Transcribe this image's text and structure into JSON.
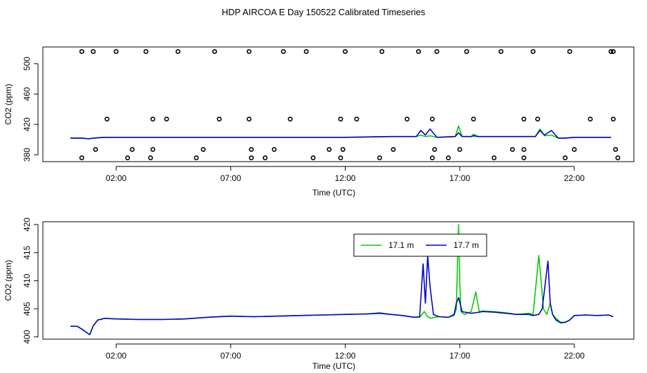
{
  "figure": {
    "title": "HDP AIRCOA E  Day 150522  Calibrated Timeseries"
  },
  "colors": {
    "series_17_1": "#00cc00",
    "series_17_7": "#0000cc",
    "points": "#000000"
  },
  "chart_data": [
    {
      "type": "scatter",
      "xlabel": "Time (UTC)",
      "ylabel": "CO2 (ppm)",
      "x_tick_labels": [
        "02:00",
        "07:00",
        "12:00",
        "17:00",
        "22:00"
      ],
      "x_tick_values": [
        2,
        7,
        12,
        17,
        22
      ],
      "y_tick_labels": [
        "380",
        "420",
        "460",
        "500"
      ],
      "y_tick_values": [
        380,
        420,
        460,
        500
      ],
      "xlim": [
        -1.2,
        24.6
      ],
      "ylim": [
        371,
        522
      ],
      "grid": false,
      "point_series": {
        "marker": "open-circle",
        "x": [
          0.5,
          1.0,
          2.0,
          3.3,
          4.7,
          6.3,
          7.8,
          9.3,
          10.3,
          12.0,
          13.6,
          15.2,
          16.0,
          17.3,
          18.8,
          20.2,
          21.8,
          23.6,
          23.7,
          1.6,
          3.6,
          4.2,
          6.5,
          7.8,
          9.6,
          11.8,
          12.5,
          14.7,
          15.8,
          17.6,
          19.8,
          20.4,
          22.7,
          23.7,
          1.1,
          2.7,
          3.6,
          5.8,
          7.9,
          8.9,
          11.3,
          11.9,
          14.1,
          15.9,
          17.0,
          19.3,
          19.8,
          22.0,
          23.8,
          0.5,
          2.5,
          3.5,
          5.5,
          7.9,
          8.5,
          10.6,
          11.8,
          13.5,
          15.8,
          16.5,
          18.5,
          19.8,
          21.6,
          23.9
        ],
        "y": [
          516,
          516,
          516,
          516,
          516,
          516,
          516,
          516,
          516,
          516,
          516,
          516,
          516,
          516,
          516,
          516,
          516,
          516,
          516,
          427,
          427,
          427,
          427,
          427,
          427,
          427,
          427,
          427,
          427,
          427,
          427,
          427,
          427,
          427,
          387,
          387,
          387,
          387,
          387,
          387,
          387,
          387,
          387,
          387,
          387,
          387,
          387,
          387,
          387,
          376,
          376,
          376,
          376,
          376,
          376,
          376,
          376,
          376,
          376,
          376,
          376,
          376,
          376,
          376
        ]
      },
      "line_series": [
        {
          "x": [
            0.0,
            0.5,
            0.8,
            1.0,
            1.5,
            3.0,
            6.0,
            9.0,
            12.0,
            14.0,
            15.1,
            15.3,
            15.5,
            15.7,
            16.0,
            16.8,
            16.95,
            17.1,
            17.5,
            17.6,
            17.8,
            19.0,
            20.3,
            20.5,
            20.7,
            21.0,
            21.3,
            21.6,
            22.0,
            23.0,
            23.6
          ],
          "y": [
            402,
            402,
            401,
            402,
            403,
            403,
            403,
            403,
            403,
            404,
            404,
            406,
            404,
            405,
            403,
            404,
            418,
            404,
            404,
            407,
            404,
            404,
            404,
            414,
            405,
            406,
            402,
            402,
            403,
            403,
            403
          ]
        },
        {
          "x": [
            0.0,
            0.5,
            0.8,
            1.0,
            1.5,
            3.0,
            6.0,
            9.0,
            12.0,
            14.0,
            15.1,
            15.3,
            15.5,
            15.7,
            16.0,
            16.8,
            16.95,
            17.1,
            17.5,
            17.6,
            17.8,
            19.0,
            20.3,
            20.5,
            20.7,
            21.0,
            21.3,
            21.6,
            22.0,
            23.0,
            23.6
          ],
          "y": [
            402,
            402,
            401,
            402,
            403,
            403,
            403,
            403,
            403,
            404,
            404,
            412,
            406,
            414,
            403,
            404,
            409,
            404,
            404,
            405,
            404,
            404,
            404,
            412,
            406,
            412,
            402,
            402,
            403,
            403,
            403
          ]
        }
      ]
    },
    {
      "type": "line",
      "xlabel": "Time (UTC)",
      "ylabel": "CO2 (ppm)",
      "x_tick_labels": [
        "02:00",
        "07:00",
        "12:00",
        "17:00",
        "22:00"
      ],
      "x_tick_values": [
        2,
        7,
        12,
        17,
        22
      ],
      "y_tick_labels": [
        "400",
        "405",
        "410",
        "415",
        "420"
      ],
      "y_tick_values": [
        400,
        405,
        410,
        415,
        420
      ],
      "xlim": [
        -1.2,
        24.6
      ],
      "ylim": [
        399.6,
        420.5
      ],
      "grid": false,
      "legend": {
        "placement": "top-center"
      },
      "series": [
        {
          "name": "17.1 m",
          "x": [
            0.0,
            0.3,
            0.5,
            0.7,
            0.85,
            1.0,
            1.2,
            1.5,
            2.0,
            3.0,
            4.0,
            5.0,
            6.0,
            7.0,
            8.0,
            9.0,
            10.0,
            11.0,
            12.0,
            13.0,
            13.5,
            14.0,
            14.5,
            15.0,
            15.25,
            15.45,
            15.6,
            15.75,
            15.9,
            16.1,
            16.5,
            16.75,
            16.85,
            16.9,
            16.95,
            17.0,
            17.05,
            17.2,
            17.5,
            17.7,
            17.85,
            18.0,
            18.5,
            19.0,
            19.5,
            20.0,
            20.2,
            20.45,
            20.55,
            20.65,
            20.8,
            20.95,
            21.05,
            21.2,
            21.4,
            21.6,
            21.8,
            22.0,
            22.5,
            23.0,
            23.5,
            23.7
          ],
          "y": [
            401.9,
            401.9,
            401.4,
            400.8,
            400.4,
            402.0,
            403.0,
            403.3,
            403.2,
            403.1,
            403.1,
            403.2,
            403.5,
            403.7,
            403.6,
            403.7,
            403.8,
            403.9,
            404.0,
            404.1,
            404.3,
            404.0,
            403.8,
            403.5,
            403.5,
            404.5,
            403.6,
            403.3,
            403.5,
            403.6,
            403.5,
            403.8,
            405.0,
            413.0,
            420.0,
            410.0,
            404.5,
            404.0,
            404.5,
            408.0,
            404.5,
            404.6,
            404.5,
            404.3,
            404.0,
            404.2,
            404.0,
            414.5,
            410.0,
            405.0,
            404.0,
            406.0,
            404.0,
            403.3,
            402.6,
            402.6,
            403.0,
            403.8,
            403.9,
            403.8,
            403.9,
            403.6
          ]
        },
        {
          "name": "17.7 m",
          "x": [
            0.0,
            0.3,
            0.5,
            0.7,
            0.85,
            1.0,
            1.2,
            1.5,
            2.0,
            3.0,
            4.0,
            5.0,
            6.0,
            7.0,
            8.0,
            9.0,
            10.0,
            11.0,
            12.0,
            13.0,
            13.5,
            14.0,
            14.5,
            15.0,
            15.25,
            15.4,
            15.5,
            15.6,
            15.7,
            15.85,
            16.1,
            16.5,
            16.75,
            16.85,
            16.95,
            17.1,
            17.5,
            17.85,
            18.0,
            18.5,
            19.0,
            19.5,
            20.0,
            20.2,
            20.45,
            20.6,
            20.85,
            20.95,
            21.05,
            21.2,
            21.4,
            21.6,
            21.8,
            22.0,
            22.5,
            23.0,
            23.5,
            23.7
          ],
          "y": [
            401.9,
            401.9,
            401.4,
            400.8,
            400.4,
            402.0,
            403.0,
            403.3,
            403.2,
            403.1,
            403.1,
            403.2,
            403.5,
            403.7,
            403.6,
            403.7,
            403.8,
            403.9,
            404.0,
            404.1,
            404.2,
            404.0,
            403.8,
            403.5,
            403.6,
            413.0,
            406.0,
            414.5,
            409.0,
            404.0,
            403.6,
            403.5,
            404.0,
            406.0,
            407.0,
            404.5,
            404.2,
            404.4,
            404.5,
            404.4,
            404.2,
            404.0,
            404.0,
            403.8,
            404.0,
            405.0,
            413.5,
            406.0,
            404.0,
            403.0,
            402.5,
            402.6,
            403.0,
            403.8,
            403.9,
            403.8,
            403.9,
            403.6
          ]
        }
      ]
    }
  ]
}
